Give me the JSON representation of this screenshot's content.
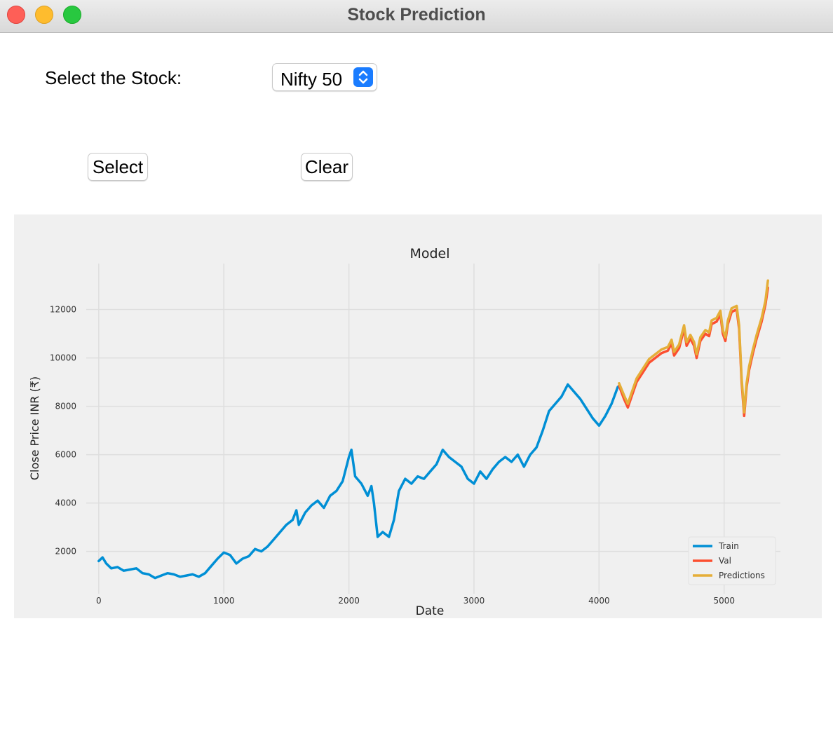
{
  "window": {
    "title": "Stock Prediction"
  },
  "form": {
    "stock_label": "Select the Stock:",
    "stock_value": "Nifty 50",
    "select_button": "Select",
    "clear_button": "Clear"
  },
  "colors": {
    "train": "#008fd5",
    "val": "#fc4f30",
    "predictions": "#e5ae38",
    "accent": "#1a7cff"
  },
  "chart_data": {
    "type": "line",
    "title": "Model",
    "xlabel": "Date",
    "ylabel": "Close Price INR (₹)",
    "xlim": [
      -100,
      5450
    ],
    "ylim": [
      250,
      13900
    ],
    "xticks": [
      0,
      1000,
      2000,
      3000,
      4000,
      5000
    ],
    "yticks": [
      2000,
      4000,
      6000,
      8000,
      10000,
      12000
    ],
    "grid": true,
    "legend_position": "lower right",
    "series": [
      {
        "name": "Train",
        "color": "#008fd5",
        "points": [
          [
            0,
            1600
          ],
          [
            30,
            1750
          ],
          [
            60,
            1500
          ],
          [
            100,
            1300
          ],
          [
            150,
            1350
          ],
          [
            200,
            1200
          ],
          [
            250,
            1250
          ],
          [
            300,
            1300
          ],
          [
            350,
            1100
          ],
          [
            400,
            1050
          ],
          [
            450,
            900
          ],
          [
            500,
            1000
          ],
          [
            550,
            1100
          ],
          [
            600,
            1050
          ],
          [
            650,
            950
          ],
          [
            700,
            1000
          ],
          [
            750,
            1050
          ],
          [
            800,
            950
          ],
          [
            850,
            1100
          ],
          [
            900,
            1400
          ],
          [
            950,
            1700
          ],
          [
            1000,
            1950
          ],
          [
            1050,
            1850
          ],
          [
            1100,
            1500
          ],
          [
            1150,
            1700
          ],
          [
            1200,
            1800
          ],
          [
            1250,
            2100
          ],
          [
            1300,
            2000
          ],
          [
            1350,
            2200
          ],
          [
            1400,
            2500
          ],
          [
            1450,
            2800
          ],
          [
            1500,
            3100
          ],
          [
            1550,
            3300
          ],
          [
            1580,
            3700
          ],
          [
            1600,
            3100
          ],
          [
            1650,
            3600
          ],
          [
            1700,
            3900
          ],
          [
            1750,
            4100
          ],
          [
            1800,
            3800
          ],
          [
            1850,
            4300
          ],
          [
            1900,
            4500
          ],
          [
            1950,
            4900
          ],
          [
            2000,
            5900
          ],
          [
            2020,
            6200
          ],
          [
            2050,
            5100
          ],
          [
            2100,
            4800
          ],
          [
            2150,
            4300
          ],
          [
            2180,
            4700
          ],
          [
            2200,
            4000
          ],
          [
            2230,
            2600
          ],
          [
            2270,
            2800
          ],
          [
            2320,
            2600
          ],
          [
            2360,
            3300
          ],
          [
            2400,
            4500
          ],
          [
            2450,
            5000
          ],
          [
            2500,
            4800
          ],
          [
            2550,
            5100
          ],
          [
            2600,
            5000
          ],
          [
            2650,
            5300
          ],
          [
            2700,
            5600
          ],
          [
            2750,
            6200
          ],
          [
            2800,
            5900
          ],
          [
            2850,
            5700
          ],
          [
            2900,
            5500
          ],
          [
            2950,
            5000
          ],
          [
            3000,
            4800
          ],
          [
            3050,
            5300
          ],
          [
            3100,
            5000
          ],
          [
            3150,
            5400
          ],
          [
            3200,
            5700
          ],
          [
            3250,
            5900
          ],
          [
            3300,
            5700
          ],
          [
            3350,
            6000
          ],
          [
            3400,
            5500
          ],
          [
            3450,
            6000
          ],
          [
            3500,
            6300
          ],
          [
            3550,
            7000
          ],
          [
            3600,
            7800
          ],
          [
            3650,
            8100
          ],
          [
            3700,
            8400
          ],
          [
            3750,
            8900
          ],
          [
            3800,
            8600
          ],
          [
            3850,
            8300
          ],
          [
            3900,
            7900
          ],
          [
            3950,
            7500
          ],
          [
            4000,
            7200
          ],
          [
            4050,
            7600
          ],
          [
            4100,
            8100
          ],
          [
            4150,
            8800
          ]
        ]
      },
      {
        "name": "Val",
        "color": "#fc4f30",
        "points": [
          [
            4160,
            8850
          ],
          [
            4200,
            8300
          ],
          [
            4230,
            7950
          ],
          [
            4260,
            8400
          ],
          [
            4300,
            9000
          ],
          [
            4350,
            9400
          ],
          [
            4400,
            9800
          ],
          [
            4450,
            10000
          ],
          [
            4500,
            10200
          ],
          [
            4550,
            10300
          ],
          [
            4580,
            10600
          ],
          [
            4600,
            10100
          ],
          [
            4640,
            10400
          ],
          [
            4680,
            11200
          ],
          [
            4700,
            10500
          ],
          [
            4730,
            10800
          ],
          [
            4760,
            10500
          ],
          [
            4780,
            10000
          ],
          [
            4810,
            10700
          ],
          [
            4850,
            11000
          ],
          [
            4880,
            10900
          ],
          [
            4900,
            11400
          ],
          [
            4940,
            11500
          ],
          [
            4970,
            11800
          ],
          [
            4990,
            11000
          ],
          [
            5010,
            10700
          ],
          [
            5030,
            11400
          ],
          [
            5060,
            11900
          ],
          [
            5100,
            12000
          ],
          [
            5120,
            11200
          ],
          [
            5140,
            9000
          ],
          [
            5160,
            7600
          ],
          [
            5180,
            8800
          ],
          [
            5200,
            9500
          ],
          [
            5230,
            10200
          ],
          [
            5260,
            10800
          ],
          [
            5300,
            11500
          ],
          [
            5330,
            12200
          ],
          [
            5350,
            12900
          ]
        ]
      },
      {
        "name": "Predictions",
        "color": "#e5ae38",
        "points": [
          [
            4160,
            8950
          ],
          [
            4200,
            8450
          ],
          [
            4230,
            8100
          ],
          [
            4260,
            8550
          ],
          [
            4300,
            9150
          ],
          [
            4350,
            9550
          ],
          [
            4400,
            9950
          ],
          [
            4450,
            10150
          ],
          [
            4500,
            10350
          ],
          [
            4550,
            10450
          ],
          [
            4580,
            10750
          ],
          [
            4600,
            10250
          ],
          [
            4640,
            10550
          ],
          [
            4680,
            11350
          ],
          [
            4700,
            10650
          ],
          [
            4730,
            10950
          ],
          [
            4760,
            10650
          ],
          [
            4780,
            10150
          ],
          [
            4810,
            10850
          ],
          [
            4850,
            11150
          ],
          [
            4880,
            11050
          ],
          [
            4900,
            11550
          ],
          [
            4940,
            11650
          ],
          [
            4970,
            11950
          ],
          [
            4990,
            11150
          ],
          [
            5010,
            10850
          ],
          [
            5030,
            11550
          ],
          [
            5060,
            12050
          ],
          [
            5100,
            12150
          ],
          [
            5120,
            11350
          ],
          [
            5140,
            9150
          ],
          [
            5160,
            7750
          ],
          [
            5180,
            8950
          ],
          [
            5200,
            9650
          ],
          [
            5230,
            10350
          ],
          [
            5260,
            10950
          ],
          [
            5300,
            11650
          ],
          [
            5330,
            12350
          ],
          [
            5350,
            13200
          ]
        ]
      }
    ]
  }
}
